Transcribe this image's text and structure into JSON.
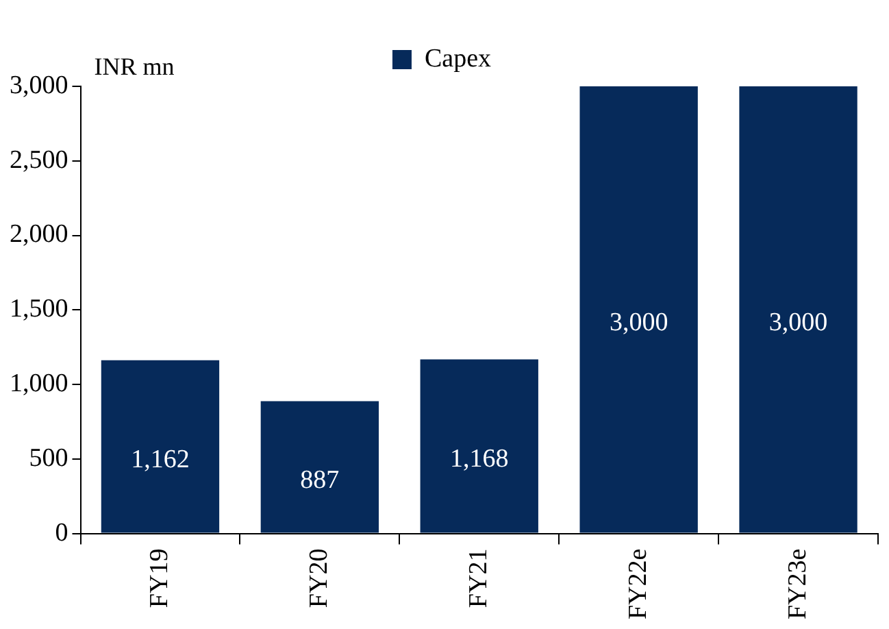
{
  "chart_data": {
    "type": "bar",
    "ylabel": "INR mn",
    "categories": [
      "FY19",
      "FY20",
      "FY21",
      "FY22e",
      "FY23e"
    ],
    "series": [
      {
        "name": "Capex",
        "color": "#062a5a",
        "values": [
          1162,
          887,
          1168,
          3000,
          3000
        ],
        "value_labels": [
          "1,162",
          "887",
          "1,168",
          "3,000",
          "3,000"
        ]
      }
    ],
    "ylim": [
      0,
      3000
    ],
    "yticks": [
      0,
      500,
      {
        "value": 1000,
        "label": "1,000"
      },
      {
        "value": 1500,
        "label": "1,500"
      },
      {
        "value": 2000,
        "label": "2,000"
      },
      {
        "value": 2500,
        "label": "2,500"
      },
      {
        "value": 3000,
        "label": "3,000"
      }
    ],
    "grid": false,
    "legend": "top"
  }
}
